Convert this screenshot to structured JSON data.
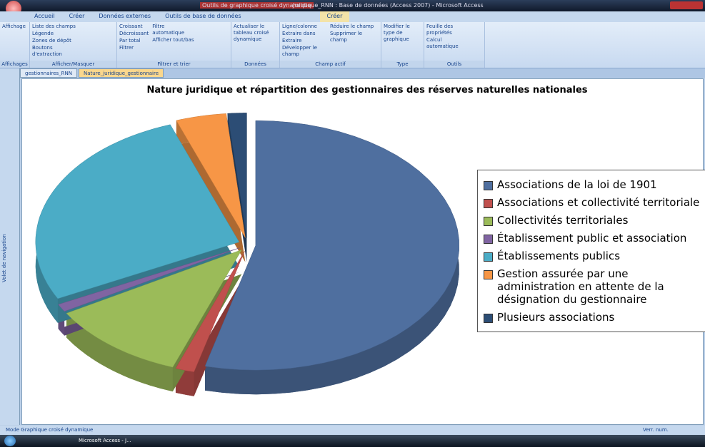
{
  "window_title_context": "Outils de graphique croisé dynamique",
  "window_title": "Juridique_RNN : Base de données (Access 2007) - Microsoft Access",
  "ribbon_tabs": [
    "Accueil",
    "Créer",
    "Données externes",
    "Outils de base de données",
    "Créer"
  ],
  "ribbon_groups": [
    {
      "name": "Affichages",
      "buttons": [
        "Affichage"
      ]
    },
    {
      "name": "Afficher/Masquer",
      "buttons": [
        "Liste des champs",
        "Légende",
        "Zones de dépôt",
        "Boutons d'extraction"
      ]
    },
    {
      "name": "Filtrer et trier",
      "buttons": [
        "Croissant",
        "Décroissant",
        "Par total",
        "Filtrer",
        "Filtre automatique",
        "Afficher tout/bas"
      ]
    },
    {
      "name": "Données",
      "buttons": [
        "Actualiser le tableau croisé dynamique"
      ]
    },
    {
      "name": "Champ actif",
      "buttons": [
        "Ligne/colonne",
        "Extraire dans",
        "Extraire",
        "Développer le champ",
        "Réduire le champ",
        "Supprimer le champ"
      ]
    },
    {
      "name": "Type",
      "buttons": [
        "Modifier le type de graphique"
      ]
    },
    {
      "name": "Outils",
      "buttons": [
        "Feuille des propriétés",
        "Calcul automatique"
      ]
    }
  ],
  "doc_tabs": [
    "gestionnaires_RNN",
    "Nature_juridique_gestionnaire"
  ],
  "nav_pane": "Volet de navigation",
  "status_left": "Mode Graphique croisé dynamique",
  "status_right": "Verr. num.",
  "taskbar": [
    "Microsoft Access - J..."
  ],
  "chart_data": {
    "type": "pie",
    "title": "Nature juridique et répartition des gestionnaires des réserves naturelles nationales",
    "categories": [
      "Associations de la loi de 1901",
      "Associations et collectivité territoriale",
      "Collectivités territoriales",
      "Établissement public et association",
      "Établissements publics",
      "Gestion assurée par une administration en attente de la désignation du gestionnaire",
      "Plusieurs associations"
    ],
    "values": [
      54,
      1.5,
      11,
      1,
      27,
      4,
      1.5
    ],
    "colors": [
      "#4f6f9f",
      "#c0504d",
      "#9bbb59",
      "#8064a2",
      "#4bacc6",
      "#f79646",
      "#2c4d75"
    ],
    "legend": "right"
  }
}
